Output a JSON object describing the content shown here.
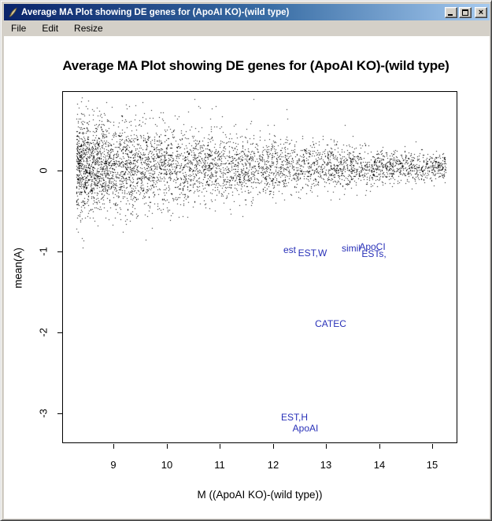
{
  "window": {
    "title": "Average MA Plot showing DE genes for (ApoAI KO)-(wild type)",
    "close_glyph": "×"
  },
  "menu": {
    "items": [
      {
        "label": "File"
      },
      {
        "label": "Edit"
      },
      {
        "label": "Resize"
      }
    ]
  },
  "colors": {
    "titlebar_left": "#0a246a",
    "titlebar_right": "#a6caf0",
    "chrome": "#d4d0c8",
    "point_color": "#000000",
    "gene_label_color": "#2830b8"
  },
  "chart_data": {
    "type": "scatter",
    "title": "Average MA Plot showing DE genes for (ApoAI KO)-(wild type)",
    "xlabel": "M ((ApoAI KO)-(wild type))",
    "ylabel": "mean(A)",
    "x_ticks": [
      9,
      10,
      11,
      12,
      13,
      14,
      15
    ],
    "y_ticks": [
      0,
      -1,
      -2,
      -3
    ],
    "xlim": [
      8.04,
      15.47
    ],
    "ylim": [
      -3.37,
      0.98
    ],
    "grid": false,
    "legend": "none",
    "description": "Dense horizontal scatter band of non-DE genes centered near mean(A)=0, widest/densest at M~8.5-10.5 and tapering narrower toward M=15; eight DE genes labeled in blue below the band.",
    "cloud": {
      "n": 5000,
      "x_min": 8.3,
      "x_max": 15.25,
      "y_center": 0.05,
      "sd_at_xmin": 0.3,
      "sd_slope": -0.033,
      "sd_min": 0.075,
      "seed": 42
    },
    "de_gene_labels": [
      {
        "text": "est",
        "x": 12.32,
        "y": -0.98
      },
      {
        "text": "EST,W",
        "x": 12.75,
        "y": -1.02
      },
      {
        "text": "simil",
        "x": 13.47,
        "y": -0.96
      },
      {
        "text": "ApoCI",
        "x": 13.88,
        "y": -0.94
      },
      {
        "text": "ESTs,",
        "x": 13.9,
        "y": -1.03
      },
      {
        "text": "CATEC",
        "x": 13.09,
        "y": -1.89
      },
      {
        "text": "EST,H",
        "x": 12.41,
        "y": -3.05
      },
      {
        "text": "ApoAI",
        "x": 12.61,
        "y": -3.18
      }
    ]
  }
}
